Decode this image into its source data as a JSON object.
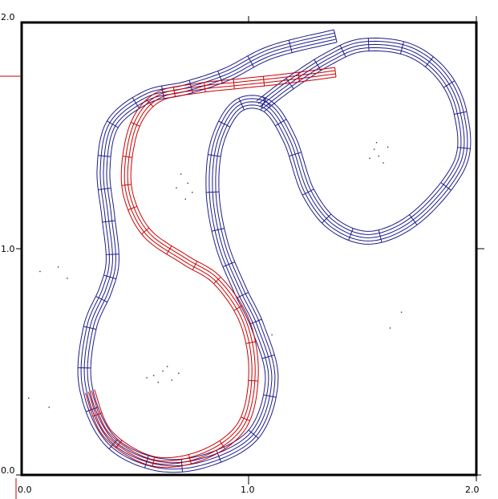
{
  "axes": {
    "x_ticks": [
      "0.0",
      "1.0",
      "2.0"
    ],
    "y_ticks": [
      "0.0",
      "1.0",
      "2.0"
    ],
    "x_range": [
      0,
      2
    ],
    "y_range": [
      0,
      2
    ],
    "frame_color": "#000000",
    "marker_color": "#cc0000"
  },
  "tracks": [
    {
      "color": "#1c1c8c",
      "lanes": 5,
      "path": [
        [
          1.38,
          1.94
        ],
        [
          1.1,
          1.87
        ],
        [
          0.9,
          1.77
        ],
        [
          0.72,
          1.71
        ],
        [
          0.55,
          1.67
        ],
        [
          0.4,
          1.55
        ],
        [
          0.36,
          1.35
        ],
        [
          0.38,
          1.15
        ],
        [
          0.4,
          0.95
        ],
        [
          0.37,
          0.82
        ],
        [
          0.3,
          0.65
        ],
        [
          0.28,
          0.4
        ],
        [
          0.38,
          0.16
        ],
        [
          0.58,
          0.05
        ],
        [
          0.8,
          0.06
        ],
        [
          1.02,
          0.18
        ],
        [
          1.1,
          0.42
        ],
        [
          1.04,
          0.65
        ],
        [
          0.96,
          0.82
        ],
        [
          0.88,
          1.02
        ],
        [
          0.84,
          1.25
        ],
        [
          0.86,
          1.47
        ],
        [
          0.95,
          1.63
        ],
        [
          1.08,
          1.63
        ],
        [
          1.18,
          1.48
        ],
        [
          1.26,
          1.25
        ],
        [
          1.38,
          1.1
        ],
        [
          1.55,
          1.05
        ],
        [
          1.75,
          1.15
        ],
        [
          1.93,
          1.38
        ],
        [
          1.93,
          1.6
        ],
        [
          1.85,
          1.77
        ],
        [
          1.7,
          1.88
        ],
        [
          1.5,
          1.9
        ],
        [
          1.35,
          1.84
        ],
        [
          1.18,
          1.73
        ],
        [
          1.05,
          1.63
        ]
      ]
    },
    {
      "color": "#cc0000",
      "lanes": 4,
      "path": [
        [
          1.38,
          1.78
        ],
        [
          1.15,
          1.75
        ],
        [
          0.96,
          1.73
        ],
        [
          0.78,
          1.71
        ],
        [
          0.6,
          1.67
        ],
        [
          0.5,
          1.55
        ],
        [
          0.46,
          1.35
        ],
        [
          0.48,
          1.2
        ],
        [
          0.56,
          1.06
        ],
        [
          0.72,
          0.95
        ],
        [
          0.86,
          0.86
        ],
        [
          0.98,
          0.68
        ],
        [
          1.02,
          0.45
        ],
        [
          0.97,
          0.22
        ],
        [
          0.8,
          0.09
        ],
        [
          0.58,
          0.06
        ],
        [
          0.38,
          0.18
        ],
        [
          0.3,
          0.37
        ]
      ]
    }
  ],
  "noise_points": [
    [
      1.55,
      1.44
    ],
    [
      1.57,
      1.41
    ],
    [
      1.59,
      1.38
    ],
    [
      1.53,
      1.4
    ],
    [
      1.61,
      1.45
    ],
    [
      1.56,
      1.47
    ],
    [
      0.7,
      1.33
    ],
    [
      0.73,
      1.29
    ],
    [
      0.68,
      1.27
    ],
    [
      0.72,
      1.22
    ],
    [
      0.75,
      1.25
    ],
    [
      0.58,
      0.44
    ],
    [
      0.62,
      0.46
    ],
    [
      0.66,
      0.42
    ],
    [
      0.6,
      0.41
    ],
    [
      0.64,
      0.48
    ],
    [
      0.69,
      0.45
    ],
    [
      0.55,
      0.43
    ],
    [
      0.08,
      0.9
    ],
    [
      0.16,
      0.92
    ],
    [
      0.2,
      0.87
    ],
    [
      0.12,
      0.3
    ],
    [
      0.03,
      0.34
    ],
    [
      1.62,
      0.65
    ],
    [
      1.67,
      0.72
    ],
    [
      1.1,
      0.62
    ]
  ]
}
